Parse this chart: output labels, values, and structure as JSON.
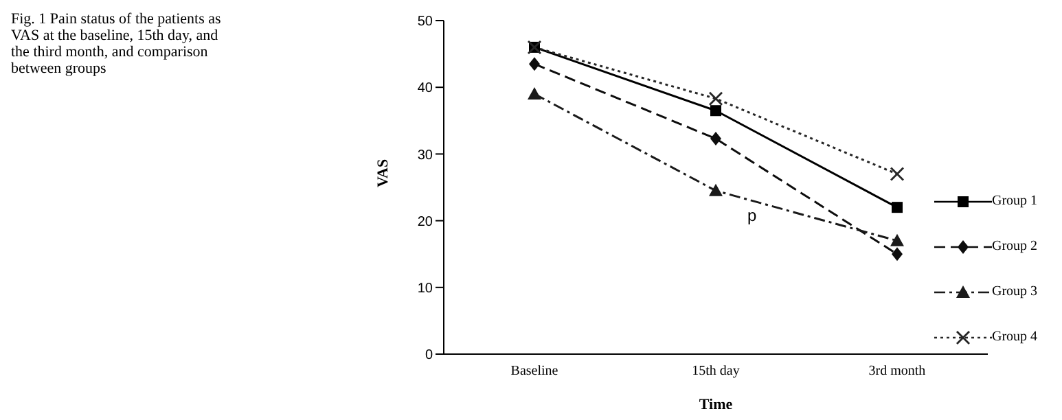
{
  "chart_data": {
    "type": "line",
    "title": "Fig. 1 Pain status of the patients as VAS at the baseline, 15th day, and the third month, and comparison between groups",
    "xlabel": "Time",
    "ylabel": "VAS",
    "categories": [
      "Baseline",
      "15th day",
      "3rd month"
    ],
    "series": [
      {
        "name": "Group 1",
        "color": "#000000",
        "values": [
          46,
          36.5,
          22
        ],
        "marker": "square",
        "line_style": "solid"
      },
      {
        "name": "Group 2",
        "color": "#0d0d0d",
        "values": [
          43.5,
          32.3,
          15
        ],
        "marker": "diamond",
        "line_style": "dashed"
      },
      {
        "name": "Group 3",
        "color": "#1a1a1a",
        "values": [
          39,
          24.5,
          17
        ],
        "marker": "triangle",
        "line_style": "dashdot"
      },
      {
        "name": "Group 4",
        "color": "#262626",
        "values": [
          46,
          38.3,
          27
        ],
        "marker": "cross",
        "line_style": "dotted"
      }
    ],
    "ylim": [
      0,
      50
    ],
    "yticks": [
      0,
      10,
      20,
      30,
      40,
      50
    ],
    "grid": false,
    "legend": "right",
    "annotations": [
      "p"
    ]
  }
}
